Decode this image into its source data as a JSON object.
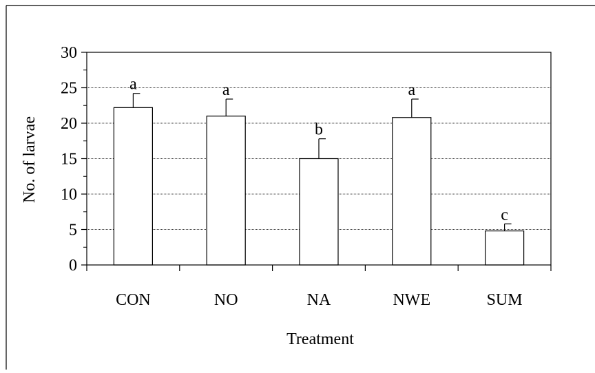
{
  "chart_data": {
    "type": "bar",
    "xlabel": "Treatment",
    "ylabel": "No. of larvae",
    "categories": [
      "CON",
      "NO",
      "NA",
      "NWE",
      "SUM"
    ],
    "values": [
      22.2,
      21.0,
      15.0,
      20.8,
      4.8
    ],
    "errors": [
      2.0,
      2.4,
      2.8,
      2.6,
      1.0
    ],
    "significance_letters": [
      "a",
      "a",
      "b",
      "a",
      "c"
    ],
    "ylim": [
      0,
      30
    ],
    "yticks": [
      0,
      5,
      10,
      15,
      20,
      25,
      30
    ],
    "grid": "horizontal",
    "legend": "none"
  }
}
